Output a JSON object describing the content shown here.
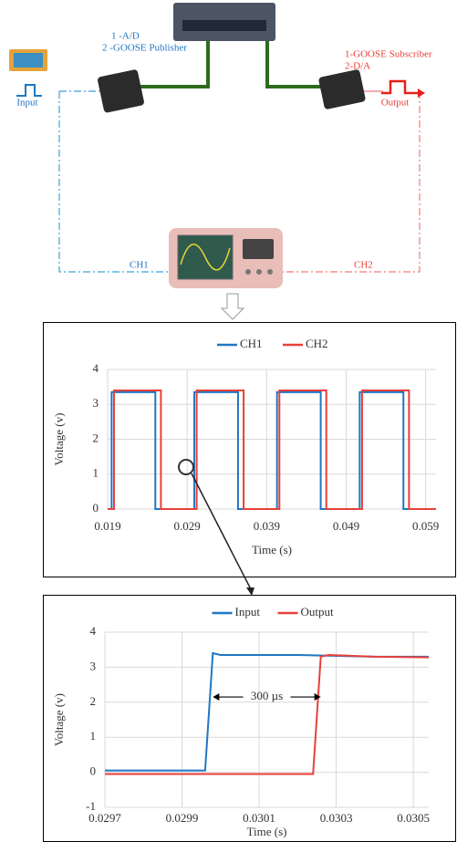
{
  "diagram": {
    "publisher_labels": [
      "1 -A/D",
      "2 -GOOSE Publisher"
    ],
    "subscriber_labels": [
      "1-GOOSE Subscriber",
      "2-D/A"
    ],
    "input": "Input",
    "output": "Output",
    "ch1": "CH1",
    "ch2": "CH2"
  },
  "chart_data": [
    {
      "type": "line",
      "xlabel": "Time (s)",
      "ylabel": "Voltage (v)",
      "xlim": [
        0.019,
        0.0603
      ],
      "ylim": [
        0,
        4
      ],
      "xticks": [
        0.019,
        0.029,
        0.039,
        0.049,
        0.059
      ],
      "yticks": [
        0,
        1,
        2,
        3,
        4
      ],
      "grid": true,
      "series": [
        {
          "name": "CH1",
          "color": "#1f77c4",
          "x": [
            0.019,
            0.0195,
            0.0195,
            0.025,
            0.025,
            0.0299,
            0.0299,
            0.0354,
            0.0354,
            0.0403,
            0.0403,
            0.0458,
            0.0458,
            0.0507,
            0.0507,
            0.0562,
            0.0562,
            0.0603
          ],
          "values": [
            0,
            0,
            3.35,
            3.35,
            0,
            0,
            3.35,
            3.35,
            0,
            0,
            3.35,
            3.35,
            0,
            0,
            3.35,
            3.35,
            0,
            0
          ]
        },
        {
          "name": "CH2",
          "color": "#e8403a",
          "x": [
            0.019,
            0.0198,
            0.0198,
            0.0257,
            0.0257,
            0.0302,
            0.0302,
            0.0361,
            0.0361,
            0.0406,
            0.0406,
            0.0465,
            0.0465,
            0.051,
            0.051,
            0.0569,
            0.0569,
            0.0603
          ],
          "values": [
            0,
            0,
            3.4,
            3.4,
            0,
            0,
            3.4,
            3.4,
            0,
            0,
            3.4,
            3.4,
            0,
            0,
            3.4,
            3.4,
            0,
            0
          ]
        }
      ]
    },
    {
      "type": "line",
      "xlabel": "Time (s)",
      "ylabel": "Voltage (v)",
      "annotation": "300 µs",
      "xlim": [
        0.0297,
        0.03054
      ],
      "ylim": [
        -1,
        4
      ],
      "xticks": [
        0.0297,
        0.0299,
        0.0301,
        0.0303,
        0.0305
      ],
      "yticks": [
        -1,
        0,
        1,
        2,
        3,
        4
      ],
      "grid": true,
      "series": [
        {
          "name": "Input",
          "color": "#1f77c4",
          "x": [
            0.0297,
            0.0298,
            0.02996,
            0.02998,
            0.03,
            0.0302,
            0.0304,
            0.03054
          ],
          "values": [
            0.05,
            0.05,
            0.05,
            3.4,
            3.35,
            3.35,
            3.3,
            3.3
          ]
        },
        {
          "name": "Output",
          "color": "#e8403a",
          "x": [
            0.0297,
            0.0299,
            0.03024,
            0.03026,
            0.03028,
            0.0304,
            0.03054
          ],
          "values": [
            -0.05,
            -0.05,
            -0.05,
            3.3,
            3.35,
            3.3,
            3.28
          ]
        }
      ]
    }
  ]
}
